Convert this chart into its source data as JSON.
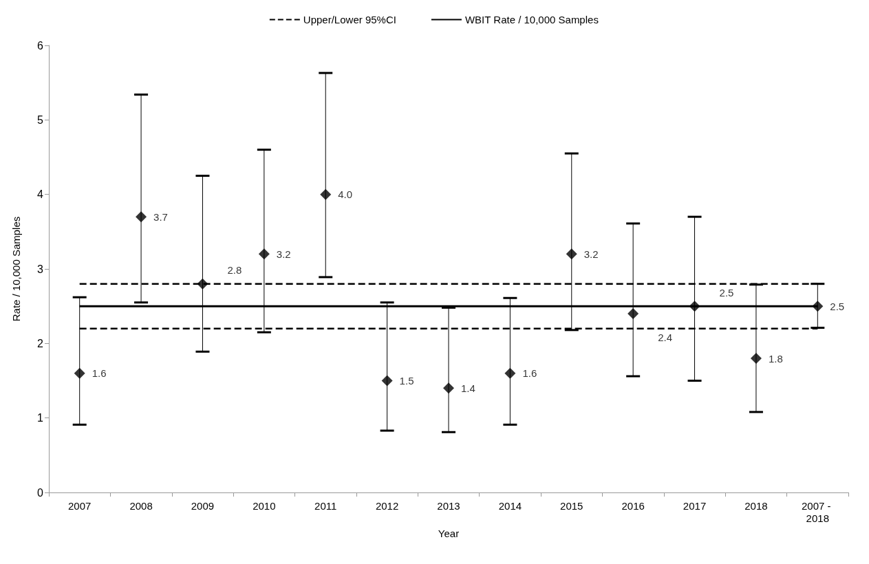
{
  "chart_data": {
    "type": "scatter",
    "xlabel": "Year",
    "ylabel": "Rate / 10,000 Samples",
    "categories": [
      "2007",
      "2008",
      "2009",
      "2010",
      "2011",
      "2012",
      "2013",
      "2014",
      "2015",
      "2016",
      "2017",
      "2018",
      "2007 - 2018"
    ],
    "ylim": [
      0,
      6
    ],
    "yticks": [
      0,
      1,
      2,
      3,
      4,
      5,
      6
    ],
    "grid": false,
    "legend": "top",
    "series": [
      {
        "name": "Upper/Lower 95%CI",
        "type": "line",
        "marker": "none",
        "line_style": "dashed",
        "color": "#000000",
        "values": [
          2.8,
          2.8,
          2.8,
          2.8,
          2.8,
          2.8,
          2.8,
          2.8,
          2.8,
          2.8,
          2.8,
          2.8,
          2.8
        ]
      },
      {
        "type": "line",
        "marker": "none",
        "line_style": "dashed",
        "color": "#000000",
        "values": [
          2.2,
          2.2,
          2.2,
          2.2,
          2.2,
          2.2,
          2.2,
          2.2,
          2.2,
          2.2,
          2.2,
          2.2,
          2.2
        ]
      },
      {
        "name": "WBIT Rate / 10,000 Samples",
        "type": "line",
        "marker": "none",
        "line_style": "solid",
        "color": "#000000",
        "values": [
          2.5,
          2.5,
          2.5,
          2.5,
          2.5,
          2.5,
          2.5,
          2.5,
          2.5,
          2.5,
          2.5,
          2.5,
          2.5
        ]
      },
      {
        "marker": "diamond",
        "color": "#000000",
        "values": [
          1.6,
          3.7,
          2.8,
          3.2,
          4.0,
          1.5,
          1.4,
          1.6,
          3.2,
          2.4,
          2.5,
          1.8,
          2.5
        ],
        "value_labels": [
          "1.6",
          "3.7",
          "2.8",
          "3.2",
          "4.0",
          "1.5",
          "1.4",
          "1.6",
          "3.2",
          "2.4",
          "2.5",
          "1.8",
          "2.5"
        ],
        "errors": [
          [
            0.91,
            2.62
          ],
          [
            2.55,
            5.34
          ],
          [
            1.89,
            4.25
          ],
          [
            2.15,
            4.6
          ],
          [
            2.89,
            5.63
          ],
          [
            0.83,
            2.55
          ],
          [
            0.81,
            2.48
          ],
          [
            0.91,
            2.61
          ],
          [
            2.18,
            4.55
          ],
          [
            1.56,
            3.61
          ],
          [
            1.5,
            3.7
          ],
          [
            1.08,
            2.79
          ],
          [
            2.21,
            2.8
          ]
        ]
      }
    ]
  }
}
